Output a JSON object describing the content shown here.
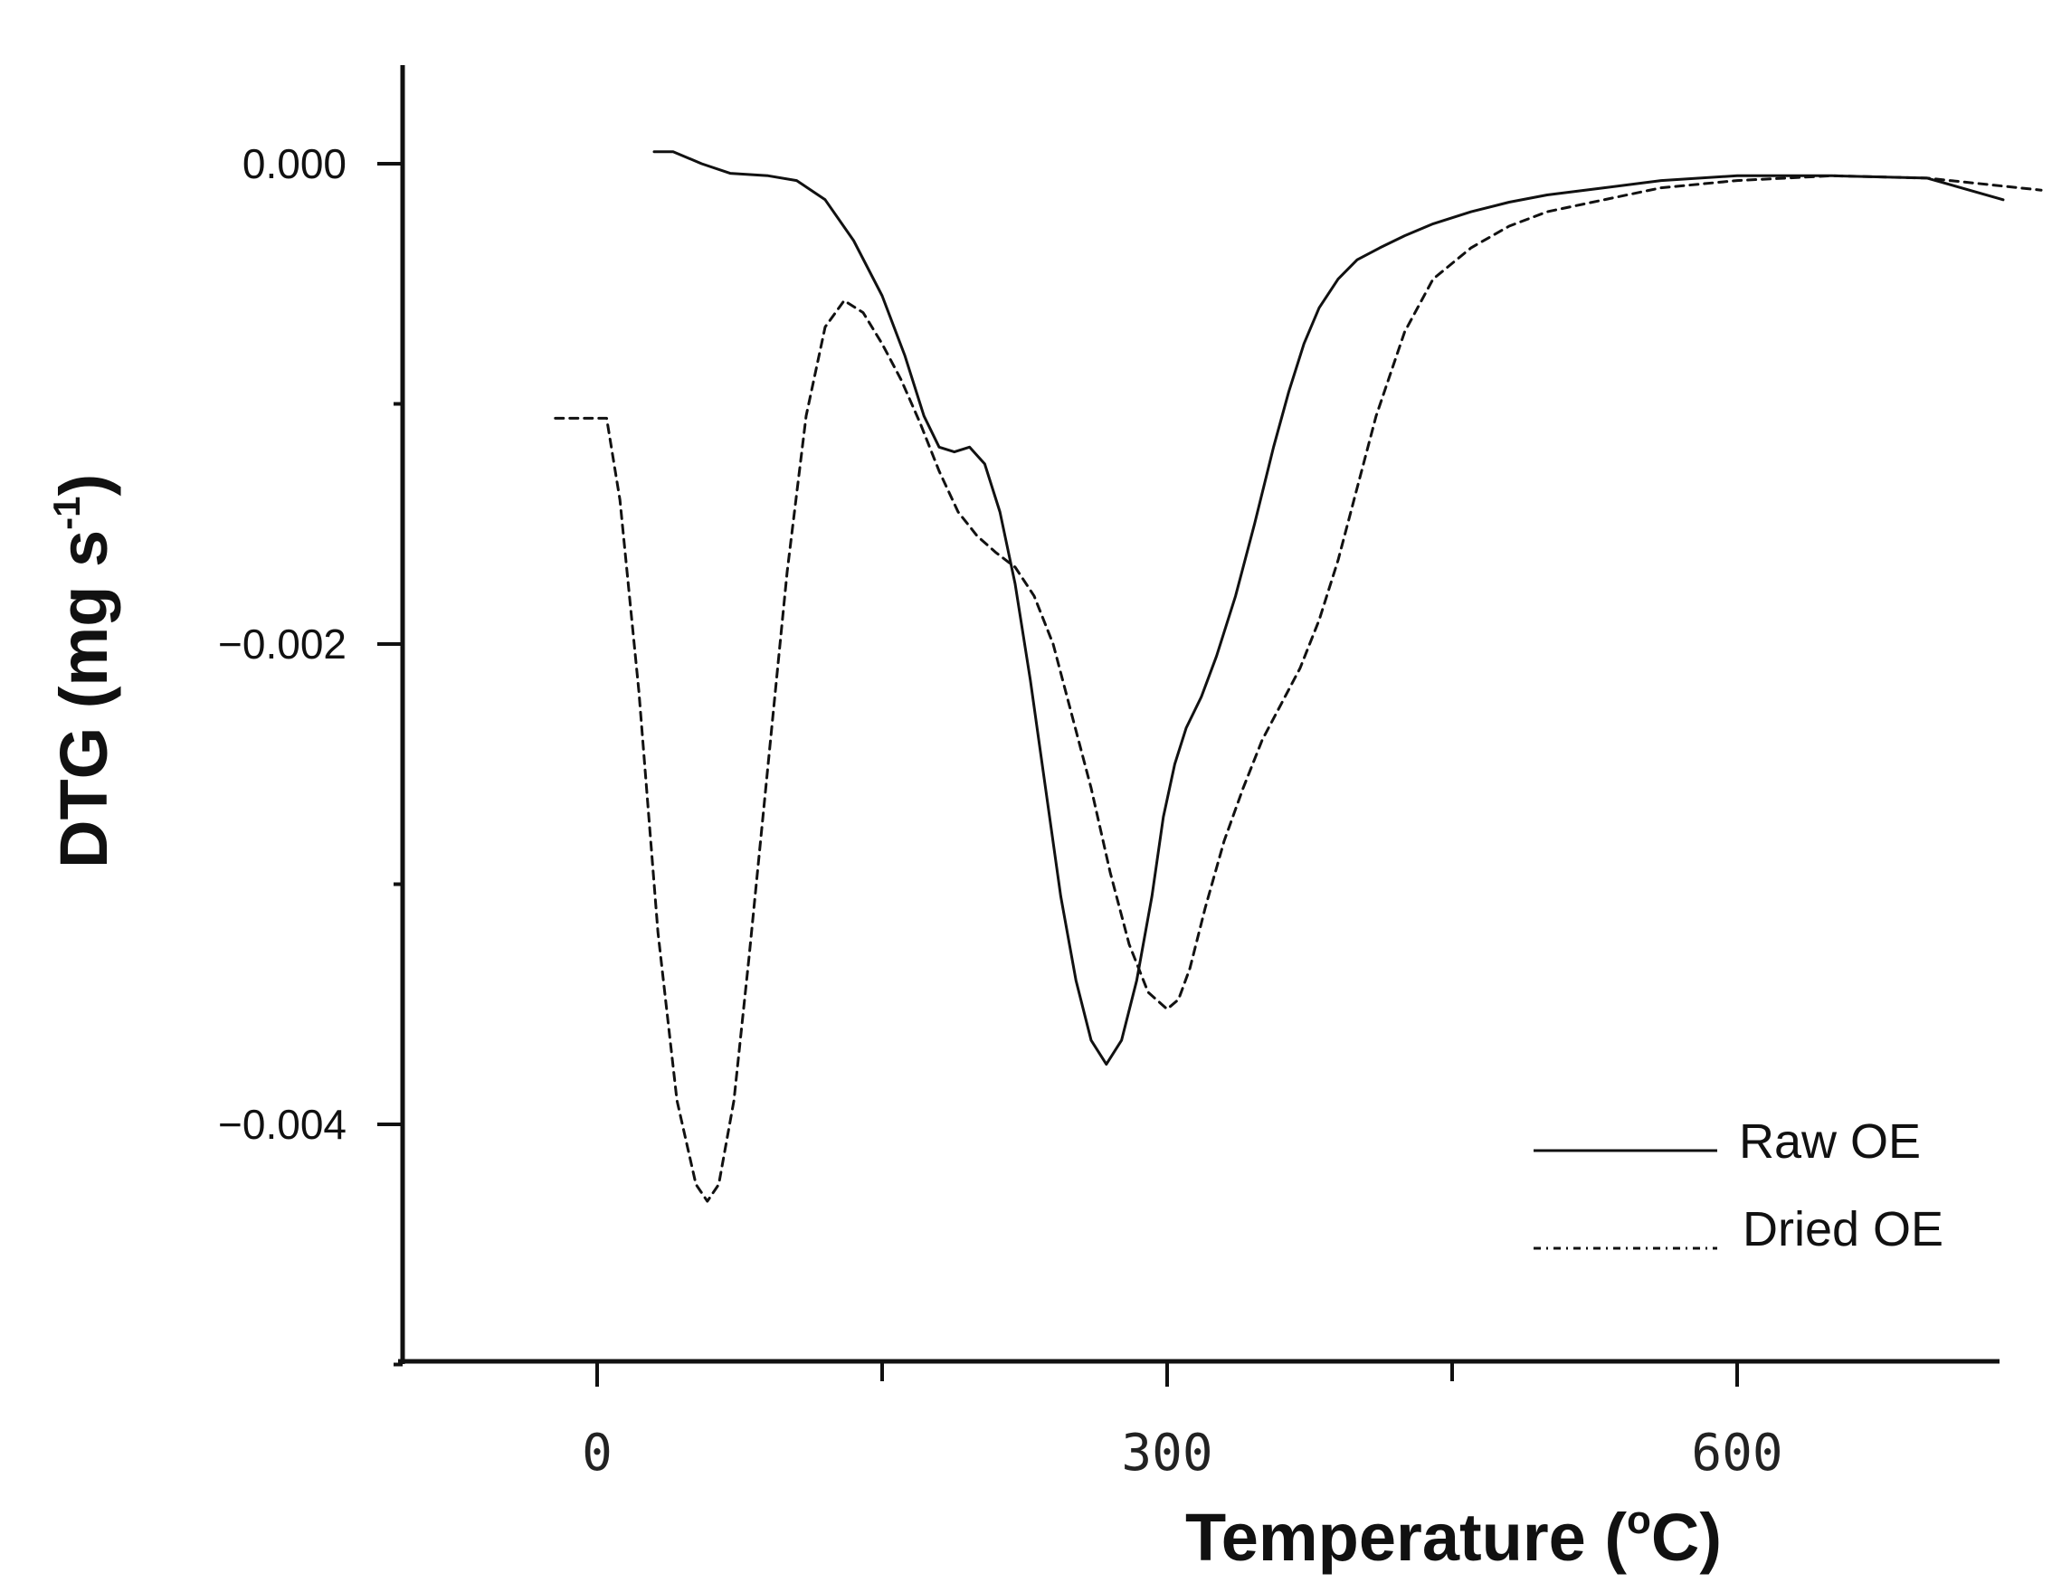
{
  "chart_data": {
    "type": "line",
    "title": "",
    "xlabel": "Temperature (",
    "xlabel_unit_sup": "o",
    "xlabel_unit": "C)",
    "ylabel": "DTG  (mg s",
    "ylabel_sup": "-1",
    "ylabel_close": ")",
    "xlim": [
      -100,
      760
    ],
    "ylim": [
      -0.005,
      0.0004
    ],
    "x_ticks": [
      0,
      300,
      600
    ],
    "x_tick_labels": [
      "0",
      "300",
      "600"
    ],
    "x_minor_ticks": [
      150,
      450
    ],
    "y_ticks": [
      0.0,
      -0.002,
      -0.004
    ],
    "y_tick_labels": [
      "0.000",
      "−0.002",
      "−0.004"
    ],
    "y_minor_ticks": [
      -0.001,
      -0.003,
      -0.005
    ],
    "legend_position": "bottom-right",
    "series": [
      {
        "name": "Raw OE",
        "style": "solid",
        "x": [
          30,
          40,
          55,
          70,
          90,
          105,
          120,
          135,
          150,
          162,
          172,
          180,
          188,
          196,
          204,
          212,
          220,
          228,
          236,
          244,
          252,
          260,
          268,
          276,
          284,
          292,
          298,
          304,
          310,
          318,
          326,
          336,
          346,
          356,
          364,
          372,
          380,
          390,
          400,
          412,
          425,
          440,
          460,
          480,
          500,
          530,
          560,
          600,
          650,
          700,
          740
        ],
        "y": [
          5e-05,
          5e-05,
          0.0,
          -4e-05,
          -5e-05,
          -7e-05,
          -0.00015,
          -0.00032,
          -0.00055,
          -0.0008,
          -0.00105,
          -0.00118,
          -0.0012,
          -0.00118,
          -0.00125,
          -0.00145,
          -0.00175,
          -0.00215,
          -0.0026,
          -0.00305,
          -0.0034,
          -0.00365,
          -0.00375,
          -0.00365,
          -0.0034,
          -0.00305,
          -0.00272,
          -0.0025,
          -0.00235,
          -0.00222,
          -0.00205,
          -0.0018,
          -0.0015,
          -0.00118,
          -0.00095,
          -0.00075,
          -0.0006,
          -0.00048,
          -0.0004,
          -0.00035,
          -0.0003,
          -0.00025,
          -0.0002,
          -0.00016,
          -0.00013,
          -0.0001,
          -7e-05,
          -5e-05,
          -5e-05,
          -6e-05,
          -0.00015
        ]
      },
      {
        "name": "Dried OE",
        "style": "dashed",
        "x": [
          -22,
          5,
          12,
          22,
          32,
          42,
          52,
          58,
          64,
          72,
          80,
          90,
          100,
          110,
          120,
          130,
          140,
          150,
          160,
          170,
          180,
          190,
          200,
          210,
          220,
          230,
          240,
          250,
          260,
          270,
          280,
          290,
          300,
          306,
          312,
          320,
          330,
          340,
          350,
          360,
          370,
          380,
          390,
          400,
          410,
          425,
          440,
          460,
          480,
          500,
          530,
          560,
          600,
          650,
          700,
          760
        ],
        "y": [
          -0.00106,
          -0.00106,
          -0.0014,
          -0.0022,
          -0.0032,
          -0.0039,
          -0.00425,
          -0.00432,
          -0.00425,
          -0.0039,
          -0.0033,
          -0.0025,
          -0.0017,
          -0.00105,
          -0.00068,
          -0.00057,
          -0.00062,
          -0.00075,
          -0.0009,
          -0.00108,
          -0.00128,
          -0.00145,
          -0.00155,
          -0.00162,
          -0.00168,
          -0.0018,
          -0.002,
          -0.0023,
          -0.0026,
          -0.00295,
          -0.00325,
          -0.00345,
          -0.00352,
          -0.00348,
          -0.00335,
          -0.0031,
          -0.00282,
          -0.0026,
          -0.0024,
          -0.00225,
          -0.0021,
          -0.0019,
          -0.00165,
          -0.00135,
          -0.00105,
          -0.0007,
          -0.00048,
          -0.00035,
          -0.00026,
          -0.0002,
          -0.00015,
          -0.0001,
          -7e-05,
          -5e-05,
          -6e-05,
          -0.00011
        ]
      }
    ]
  }
}
